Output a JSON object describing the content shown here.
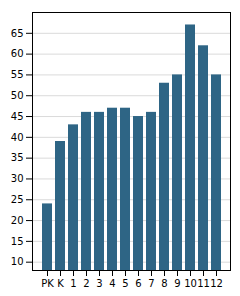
{
  "chart_data": {
    "type": "bar",
    "categories": [
      "PK",
      "K",
      "1",
      "2",
      "3",
      "4",
      "5",
      "6",
      "7",
      "8",
      "9",
      "10",
      "11",
      "12"
    ],
    "values": [
      24,
      39,
      43,
      46,
      46,
      47,
      47,
      45,
      46,
      53,
      55,
      67,
      62,
      55
    ],
    "color": "#2e6585",
    "ylim": [
      8,
      70
    ],
    "yticks": [
      10,
      15,
      20,
      25,
      30,
      35,
      40,
      45,
      50,
      55,
      60,
      65
    ],
    "grid": true
  }
}
